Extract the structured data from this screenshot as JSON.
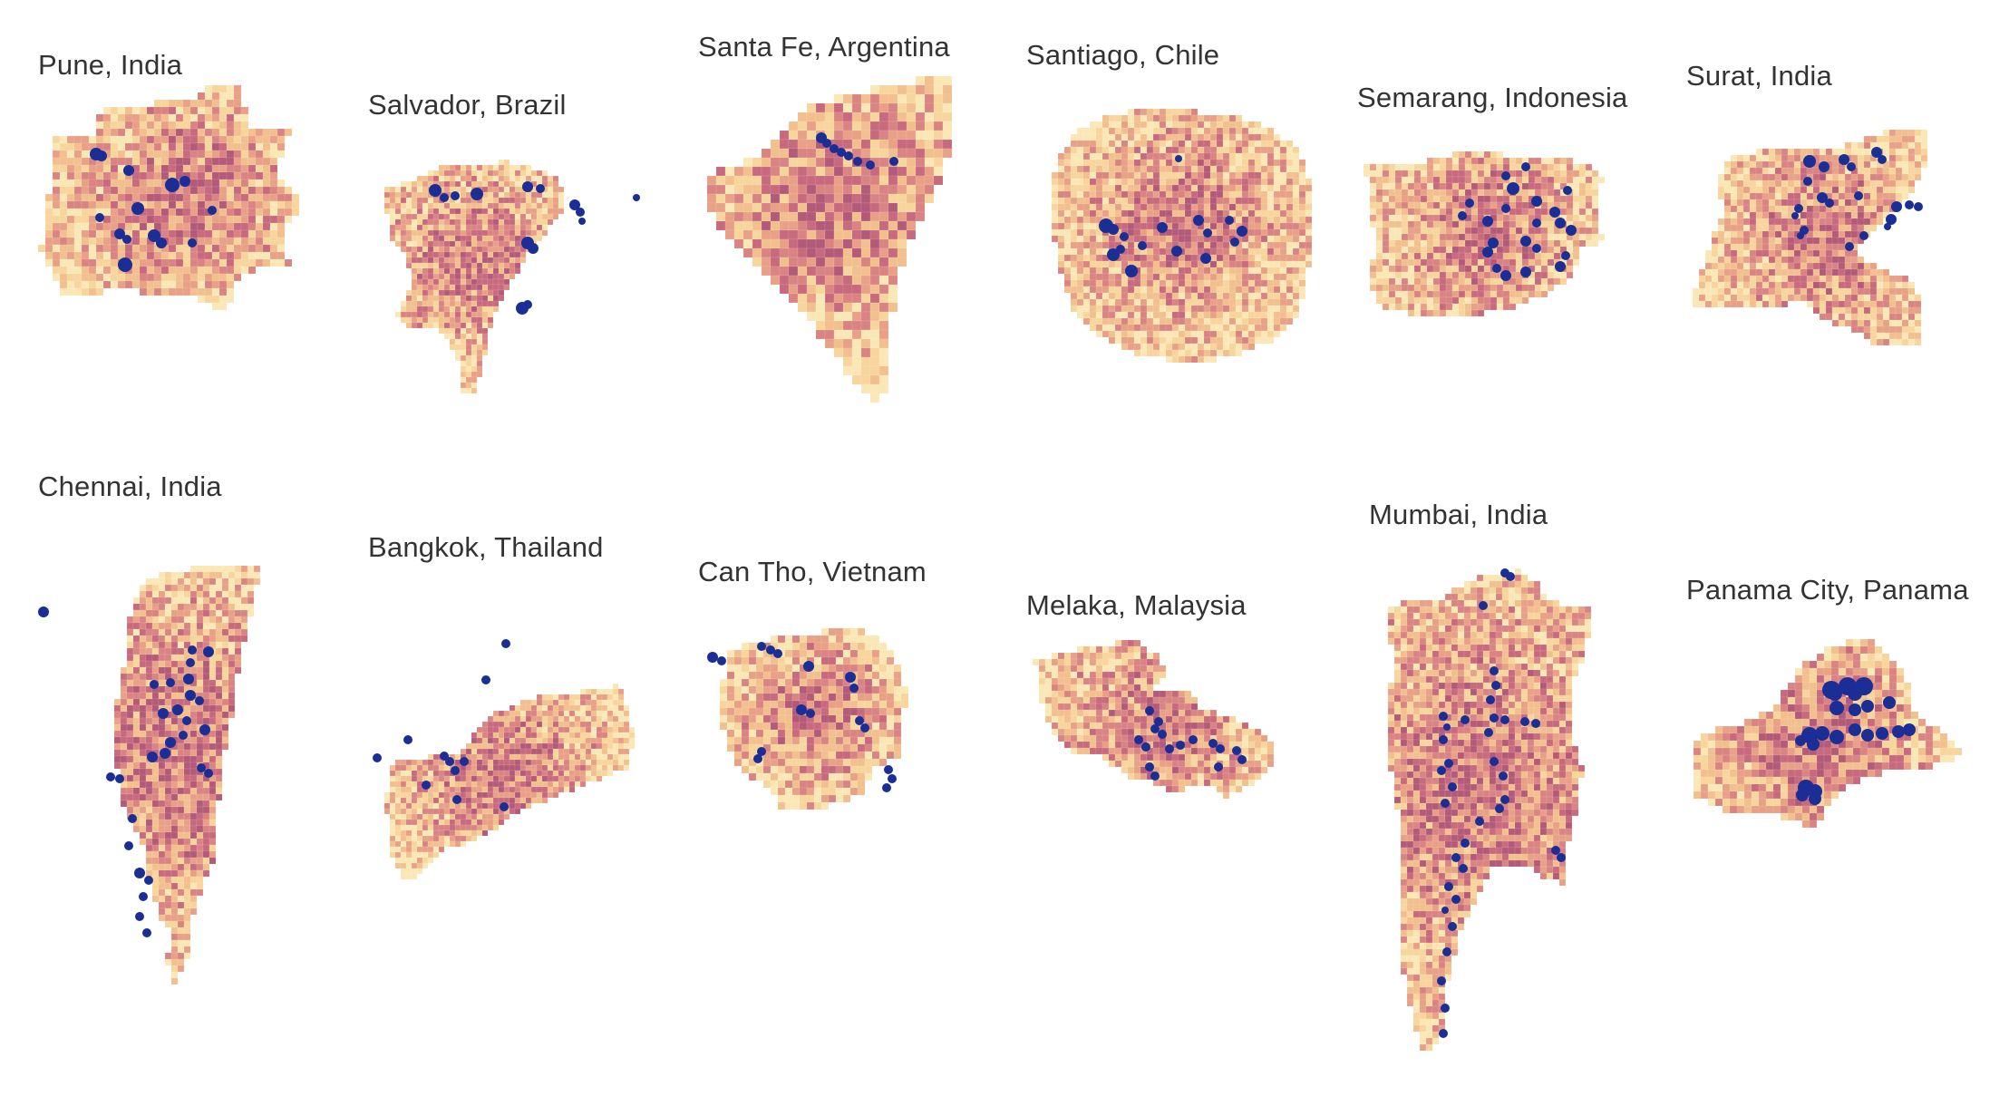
{
  "colors": {
    "ramp": [
      "#fbe7b5",
      "#f8d59c",
      "#f2bf8e",
      "#e8a187",
      "#d98483",
      "#c86a7e",
      "#b25a78"
    ],
    "points": "#1a2e96"
  },
  "cities": [
    {
      "id": "pune",
      "name": "Pune, India"
    },
    {
      "id": "salvador",
      "name": "Salvador, Brazil"
    },
    {
      "id": "santafe",
      "name": "Santa Fe, Argentina"
    },
    {
      "id": "santiago",
      "name": "Santiago, Chile"
    },
    {
      "id": "semarang",
      "name": "Semarang, Indonesia"
    },
    {
      "id": "surat",
      "name": "Surat, India"
    },
    {
      "id": "chennai",
      "name": "Chennai, India"
    },
    {
      "id": "bangkok",
      "name": "Bangkok, Thailand"
    },
    {
      "id": "cantho",
      "name": "Can Tho, Vietnam"
    },
    {
      "id": "melaka",
      "name": "Melaka, Malaysia"
    },
    {
      "id": "mumbai",
      "name": "Mumbai, India"
    },
    {
      "id": "panama",
      "name": "Panama City, Panama"
    }
  ]
}
